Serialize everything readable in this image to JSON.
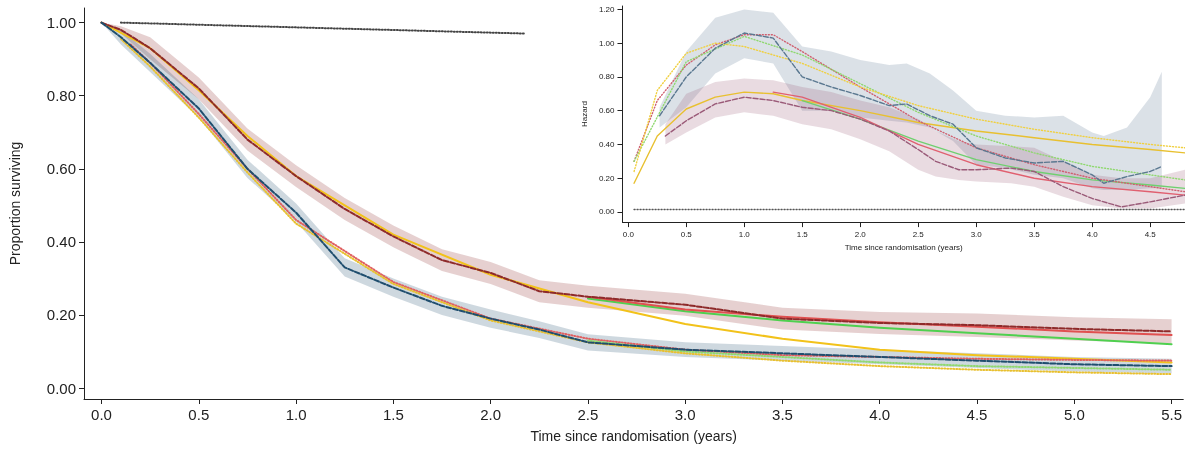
{
  "chart_data": [
    {
      "type": "line",
      "xlabel": "Time since randomisation (years)",
      "ylabel": "Proportion surviving",
      "xlim": [
        -0.09,
        5.56
      ],
      "ylim": [
        -0.03,
        1.04
      ],
      "xticks": [
        {
          "value": 0,
          "label": "0.0"
        },
        {
          "value": 0.5,
          "label": "0.5"
        },
        {
          "value": 1,
          "label": "1.0"
        },
        {
          "value": 1.5,
          "label": "1.5"
        },
        {
          "value": 2,
          "label": "2.0"
        },
        {
          "value": 2.5,
          "label": "2.5"
        },
        {
          "value": 3,
          "label": "3.0"
        },
        {
          "value": 3.5,
          "label": "3.5"
        },
        {
          "value": 4,
          "label": "4.0"
        },
        {
          "value": 4.5,
          "label": "4.5"
        },
        {
          "value": 5,
          "label": "5.0"
        },
        {
          "value": 5.5,
          "label": "5.5"
        }
      ],
      "yticks": [
        {
          "value": 0,
          "label": "0.00"
        },
        {
          "value": 0.2,
          "label": "0.20"
        },
        {
          "value": 0.4,
          "label": "0.40"
        },
        {
          "value": 0.6,
          "label": "0.60"
        },
        {
          "value": 0.8,
          "label": "0.80"
        },
        {
          "value": 1,
          "label": "1.00"
        }
      ],
      "series": [
        {
          "color": "#8e2a2a",
          "line_style": "dashed",
          "x": [
            0,
            0.1,
            0.25,
            0.5,
            0.75,
            1,
            1.25,
            1.5,
            1.75,
            2,
            2.25,
            2.5,
            3,
            3.5,
            4,
            4.5,
            5,
            5.5
          ],
          "values": [
            1,
            0.98,
            0.93,
            0.82,
            0.68,
            0.58,
            0.49,
            0.415,
            0.35,
            0.315,
            0.265,
            0.25,
            0.228,
            0.19,
            0.178,
            0.172,
            0.162,
            0.155
          ],
          "lower": [
            1,
            0.97,
            0.9,
            0.79,
            0.65,
            0.55,
            0.46,
            0.385,
            0.32,
            0.285,
            0.235,
            0.22,
            0.198,
            0.16,
            0.148,
            0.14,
            0.13,
            0.122
          ],
          "upper": [
            1,
            0.99,
            0.96,
            0.85,
            0.71,
            0.61,
            0.52,
            0.445,
            0.38,
            0.345,
            0.295,
            0.28,
            0.258,
            0.22,
            0.208,
            0.204,
            0.194,
            0.188
          ]
        },
        {
          "color": "#1f4e6e",
          "line_style": "dashed",
          "x": [
            0,
            0.1,
            0.25,
            0.5,
            0.75,
            1,
            1.25,
            1.5,
            1.75,
            2,
            2.25,
            2.5,
            3,
            3.5,
            4,
            4.5,
            5,
            5.5
          ],
          "values": [
            1,
            0.96,
            0.89,
            0.765,
            0.6,
            0.48,
            0.33,
            0.275,
            0.225,
            0.19,
            0.16,
            0.125,
            0.105,
            0.095,
            0.085,
            0.075,
            0.065,
            0.06
          ],
          "lower": [
            1,
            0.94,
            0.865,
            0.74,
            0.575,
            0.455,
            0.305,
            0.25,
            0.2,
            0.165,
            0.137,
            0.103,
            0.085,
            0.075,
            0.065,
            0.055,
            0.045,
            0.04
          ],
          "upper": [
            1,
            0.98,
            0.915,
            0.79,
            0.625,
            0.505,
            0.355,
            0.3,
            0.25,
            0.215,
            0.183,
            0.147,
            0.125,
            0.115,
            0.105,
            0.095,
            0.085,
            0.08
          ]
        },
        {
          "color": "#f2c21a",
          "line_style": "solid",
          "x": [
            0,
            0.25,
            0.5,
            0.75,
            1,
            1.5,
            2,
            2.5,
            3,
            3.5,
            4,
            4.5,
            5,
            5.5
          ],
          "values": [
            1,
            0.93,
            0.815,
            0.69,
            0.58,
            0.42,
            0.31,
            0.235,
            0.175,
            0.135,
            0.105,
            0.09,
            0.08,
            0.07
          ]
        },
        {
          "color": "#4fd04f",
          "line_style": "solid",
          "x": [
            2.5,
            3,
            3.5,
            4,
            4.5,
            5,
            5.5
          ],
          "values": [
            0.245,
            0.21,
            0.185,
            0.165,
            0.15,
            0.135,
            0.12
          ]
        },
        {
          "color": "#e05050",
          "line_style": "solid",
          "x": [
            2.5,
            3,
            3.5,
            4,
            4.5,
            5,
            5.5
          ],
          "values": [
            0.25,
            0.215,
            0.195,
            0.18,
            0.168,
            0.155,
            0.145
          ]
        },
        {
          "color": "#e06060",
          "line_style": "dotted",
          "x": [
            0.15,
            0.25,
            0.5,
            0.75,
            1,
            1.5,
            2,
            2.5,
            3,
            3.5,
            4,
            4.5,
            5,
            5.5
          ],
          "values": [
            0.94,
            0.89,
            0.75,
            0.6,
            0.46,
            0.29,
            0.19,
            0.135,
            0.105,
            0.09,
            0.085,
            0.08,
            0.077,
            0.075
          ]
        },
        {
          "color": "#8fd86f",
          "line_style": "dotted",
          "x": [
            2.5,
            3,
            3.5,
            4,
            4.5,
            5,
            5.5
          ],
          "values": [
            0.13,
            0.1,
            0.085,
            0.07,
            0.06,
            0.055,
            0.05
          ]
        },
        {
          "color": "#e8c030",
          "line_style": "dotted",
          "x": [
            0.1,
            0.25,
            0.5,
            0.75,
            1,
            1.5,
            2,
            2.5,
            3,
            3.5,
            4,
            4.5,
            5,
            5.5
          ],
          "values": [
            0.955,
            0.88,
            0.74,
            0.59,
            0.45,
            0.285,
            0.185,
            0.125,
            0.095,
            0.075,
            0.06,
            0.05,
            0.043,
            0.038
          ]
        },
        {
          "color": "#444444",
          "line_style": "dotted",
          "x": [
            0.1,
            2.18
          ],
          "values": [
            1,
            0.97
          ]
        }
      ]
    },
    {
      "type": "line",
      "xlabel": "Time since randomisation (years)",
      "ylabel": "Hazard",
      "xlim": [
        -0.05,
        4.8
      ],
      "ylim": [
        -0.06,
        1.22
      ],
      "xticks": [
        {
          "value": 0,
          "label": "0.0"
        },
        {
          "value": 0.5,
          "label": "0.5"
        },
        {
          "value": 1,
          "label": "1.0"
        },
        {
          "value": 1.5,
          "label": "1.5"
        },
        {
          "value": 2,
          "label": "2.0"
        },
        {
          "value": 2.5,
          "label": "2.5"
        },
        {
          "value": 3,
          "label": "3.0"
        },
        {
          "value": 3.5,
          "label": "3.5"
        },
        {
          "value": 4,
          "label": "4.0"
        },
        {
          "value": 4.5,
          "label": "4.5"
        }
      ],
      "yticks": [
        {
          "value": 0,
          "label": "0.00"
        },
        {
          "value": 0.2,
          "label": "0.20"
        },
        {
          "value": 0.4,
          "label": "0.40"
        },
        {
          "value": 0.6,
          "label": "0.60"
        },
        {
          "value": 0.8,
          "label": "0.80"
        },
        {
          "value": 1,
          "label": "1.00"
        },
        {
          "value": 1.2,
          "label": "1.20"
        }
      ],
      "series": [
        {
          "color": "#5a7890",
          "line_style": "dashed",
          "x": [
            0.27,
            0.5,
            0.75,
            1,
            1.25,
            1.5,
            1.75,
            2,
            2.25,
            2.4,
            2.6,
            2.8,
            3,
            3.25,
            3.5,
            3.75,
            4,
            4.1,
            4.3,
            4.5,
            4.6
          ],
          "values": [
            0.57,
            0.8,
            0.97,
            1.06,
            1.03,
            0.8,
            0.74,
            0.69,
            0.63,
            0.64,
            0.57,
            0.52,
            0.38,
            0.32,
            0.29,
            0.3,
            0.22,
            0.17,
            0.21,
            0.24,
            0.27
          ],
          "lower": [
            0.5,
            0.62,
            0.82,
            0.91,
            0.88,
            0.6,
            0.6,
            0.56,
            0.54,
            0.53,
            0.5,
            0.42,
            0.28,
            0.26,
            0.22,
            0.2,
            0.14,
            0.13,
            0.13,
            0.14,
            0.14
          ],
          "upper": [
            0.62,
            0.95,
            1.15,
            1.2,
            1.18,
            0.98,
            0.95,
            0.9,
            0.87,
            0.88,
            0.82,
            0.72,
            0.6,
            0.57,
            0.56,
            0.57,
            0.47,
            0.45,
            0.5,
            0.68,
            0.83
          ]
        },
        {
          "color": "#9a5a78",
          "line_style": "dashed",
          "x": [
            0.32,
            0.5,
            0.75,
            1,
            1.25,
            1.5,
            1.75,
            2,
            2.25,
            2.5,
            2.65,
            2.85,
            3,
            3.3,
            3.5,
            3.75,
            4,
            4.25,
            4.5,
            4.8
          ],
          "values": [
            0.45,
            0.54,
            0.64,
            0.68,
            0.66,
            0.62,
            0.6,
            0.55,
            0.48,
            0.37,
            0.3,
            0.25,
            0.25,
            0.26,
            0.24,
            0.15,
            0.08,
            0.03,
            0.06,
            0.1
          ],
          "lower": [
            0.4,
            0.47,
            0.56,
            0.59,
            0.57,
            0.52,
            0.49,
            0.43,
            0.36,
            0.25,
            0.21,
            0.19,
            0.18,
            0.17,
            0.15,
            0.09,
            0.04,
            0.02,
            0.02,
            0.05
          ],
          "upper": [
            0.52,
            0.7,
            0.77,
            0.79,
            0.78,
            0.74,
            0.71,
            0.66,
            0.62,
            0.55,
            0.48,
            0.42,
            0.4,
            0.39,
            0.38,
            0.3,
            0.22,
            0.2,
            0.2,
            0.25
          ]
        },
        {
          "color": "#e8c030",
          "line_style": "solid",
          "x": [
            0.05,
            0.25,
            0.5,
            0.75,
            1,
            1.25,
            1.5,
            2,
            2.5,
            3,
            3.5,
            4,
            4.5,
            4.8
          ],
          "values": [
            0.17,
            0.45,
            0.61,
            0.68,
            0.71,
            0.7,
            0.66,
            0.6,
            0.53,
            0.48,
            0.44,
            0.4,
            0.37,
            0.35
          ]
        },
        {
          "color": "#6fd06f",
          "line_style": "solid",
          "x": [
            1.5,
            2,
            2.5,
            3,
            3.5,
            4,
            4.5,
            4.8
          ],
          "values": [
            0.66,
            0.55,
            0.42,
            0.31,
            0.24,
            0.19,
            0.16,
            0.14
          ]
        },
        {
          "color": "#e06070",
          "line_style": "solid",
          "x": [
            1.25,
            1.5,
            2,
            2.5,
            3,
            3.5,
            4,
            4.5,
            4.8
          ],
          "values": [
            0.71,
            0.68,
            0.56,
            0.4,
            0.28,
            0.2,
            0.15,
            0.12,
            0.1
          ]
        },
        {
          "color": "#d06070",
          "line_style": "dotted",
          "x": [
            0.05,
            0.25,
            0.5,
            0.75,
            1,
            1.25,
            1.5,
            2,
            2.5,
            3,
            3.5,
            4,
            4.5,
            4.8
          ],
          "values": [
            0.3,
            0.66,
            0.87,
            0.99,
            1.05,
            1.05,
            0.95,
            0.74,
            0.54,
            0.38,
            0.28,
            0.2,
            0.15,
            0.12
          ]
        },
        {
          "color": "#8fd86f",
          "line_style": "dotted",
          "x": [
            0.05,
            0.5,
            1,
            1.5,
            2,
            2.5,
            3,
            3.5,
            4,
            4.5,
            4.8
          ],
          "values": [
            0.3,
            0.89,
            1.04,
            0.93,
            0.76,
            0.59,
            0.45,
            0.35,
            0.27,
            0.22,
            0.19
          ]
        },
        {
          "color": "#f0d040",
          "line_style": "dotted",
          "x": [
            0.05,
            0.25,
            0.5,
            0.75,
            1,
            1.5,
            2,
            2.5,
            3,
            3.5,
            4,
            4.5,
            4.8
          ],
          "values": [
            0.24,
            0.72,
            0.94,
            1,
            0.98,
            0.88,
            0.74,
            0.63,
            0.55,
            0.49,
            0.44,
            0.4,
            0.38
          ]
        },
        {
          "color": "#555555",
          "line_style": "dotted",
          "x": [
            0.05,
            4.8
          ],
          "values": [
            0.015,
            0.015
          ]
        }
      ]
    }
  ]
}
